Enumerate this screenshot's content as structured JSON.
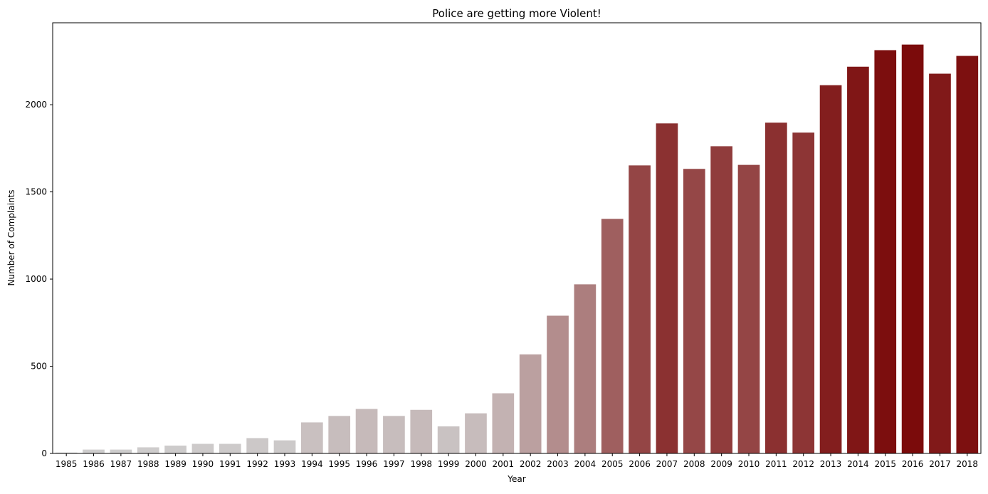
{
  "chart_data": {
    "type": "bar",
    "title": "Police are getting more Violent!",
    "xlabel": "Year",
    "ylabel": "Number of Complaints",
    "categories": [
      "1985",
      "1986",
      "1987",
      "1988",
      "1989",
      "1990",
      "1991",
      "1992",
      "1993",
      "1994",
      "1995",
      "1996",
      "1997",
      "1998",
      "1999",
      "2000",
      "2001",
      "2002",
      "2003",
      "2004",
      "2005",
      "2006",
      "2007",
      "2008",
      "2009",
      "2010",
      "2011",
      "2012",
      "2013",
      "2014",
      "2015",
      "2016",
      "2017",
      "2018"
    ],
    "values": [
      5,
      22,
      22,
      35,
      45,
      55,
      55,
      88,
      75,
      178,
      215,
      255,
      215,
      250,
      155,
      230,
      345,
      568,
      790,
      970,
      1345,
      1652,
      1893,
      1632,
      1762,
      1655,
      1897,
      1840,
      2112,
      2218,
      2313,
      2345,
      2178,
      2280
    ],
    "yticks": [
      0,
      500,
      1000,
      1500,
      2000
    ],
    "ylim": [
      0,
      2470
    ],
    "grid": false,
    "legend": "none",
    "colors": {
      "bar_low": "#cfcfcf",
      "bar_high": "#7b0b0b",
      "axis": "#000000"
    }
  }
}
